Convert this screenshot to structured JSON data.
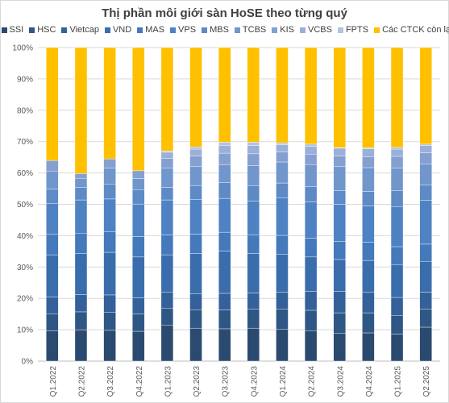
{
  "chart_data": {
    "type": "bar",
    "stacked": true,
    "percent": true,
    "title": "Thị phần môi giới sàn HoSE theo từng quý",
    "legend_position": "top",
    "grid": true,
    "ylim": [
      0,
      100
    ],
    "yticks": [
      "0%",
      "10%",
      "20%",
      "30%",
      "40%",
      "50%",
      "60%",
      "70%",
      "80%",
      "90%",
      "100%"
    ],
    "categories": [
      "Q1.2022",
      "Q2.2022",
      "Q3.2022",
      "Q4.2022",
      "Q1.2023",
      "Q2.2023",
      "Q3.2023",
      "Q4.2023",
      "Q1.2024",
      "Q2.2024",
      "Q3.2024",
      "Q4.2024",
      "Q1.2025",
      "Q2.2025"
    ],
    "series": [
      {
        "name": "SSI",
        "color": "#2b4a6f",
        "values": [
          9.6,
          10.0,
          9.8,
          9.5,
          11.5,
          10.5,
          10.3,
          10.5,
          10.2,
          9.7,
          8.8,
          9.0,
          8.6,
          10.8
        ]
      },
      {
        "name": "HSC",
        "color": "#2f5785",
        "values": [
          5.5,
          5.7,
          5.8,
          5.5,
          5.4,
          5.9,
          6.0,
          6.0,
          6.3,
          6.5,
          6.6,
          6.4,
          6.0,
          5.7
        ]
      },
      {
        "name": "Vietcap",
        "color": "#34619a",
        "values": [
          5.3,
          5.5,
          5.5,
          5.2,
          5.0,
          5.1,
          5.3,
          5.2,
          5.5,
          6.0,
          6.8,
          6.5,
          5.7,
          5.5
        ]
      },
      {
        "name": "VND",
        "color": "#3a6dac",
        "values": [
          13.5,
          13.1,
          13.6,
          13.0,
          12.0,
          12.8,
          13.5,
          12.6,
          12.1,
          11.0,
          10.2,
          10.2,
          10.5,
          9.8
        ]
      },
      {
        "name": "MAS",
        "color": "#4479bb",
        "values": [
          6.5,
          6.5,
          6.5,
          6.5,
          6.3,
          6.2,
          6.0,
          6.0,
          6.0,
          6.0,
          5.8,
          5.8,
          5.7,
          5.5
        ]
      },
      {
        "name": "VPS",
        "color": "#4f82c3",
        "values": [
          9.8,
          10.6,
          10.5,
          10.4,
          11.2,
          11.0,
          10.8,
          10.7,
          11.9,
          11.6,
          11.8,
          11.6,
          12.8,
          14.0
        ]
      },
      {
        "name": "MBS",
        "color": "#5e8ac6",
        "values": [
          4.6,
          4.0,
          4.8,
          4.6,
          4.0,
          4.5,
          5.0,
          5.0,
          4.8,
          4.8,
          4.4,
          4.6,
          5.0,
          4.8
        ]
      },
      {
        "name": "TCBS",
        "color": "#7096cc",
        "values": [
          5.8,
          2.9,
          5.0,
          3.5,
          6.2,
          6.0,
          5.8,
          6.3,
          6.7,
          7.1,
          7.6,
          7.6,
          7.2,
          6.7
        ]
      },
      {
        "name": "KIS",
        "color": "#859fd0",
        "values": [
          3.4,
          1.5,
          3.0,
          2.5,
          3.0,
          3.4,
          3.6,
          3.8,
          3.2,
          3.3,
          3.4,
          3.5,
          3.8,
          3.6
        ]
      },
      {
        "name": "VCBS",
        "color": "#9ab0d8",
        "values": [
          0.0,
          0.0,
          0.0,
          0.0,
          2.0,
          2.2,
          2.5,
          2.6,
          2.3,
          2.5,
          2.5,
          2.5,
          2.3,
          2.3
        ]
      },
      {
        "name": "FPTS",
        "color": "#b3c3e2",
        "values": [
          0.0,
          0.0,
          0.0,
          0.0,
          0.4,
          0.7,
          1.0,
          1.1,
          0.6,
          0.7,
          0.2,
          0.3,
          0.6,
          0.5
        ]
      },
      {
        "name": "Các CTCK còn lại",
        "color": "#ffc000",
        "values": [
          36.0,
          40.2,
          35.5,
          39.3,
          33.0,
          31.7,
          30.2,
          30.2,
          30.4,
          30.8,
          31.9,
          32.0,
          31.8,
          30.8
        ]
      }
    ]
  }
}
